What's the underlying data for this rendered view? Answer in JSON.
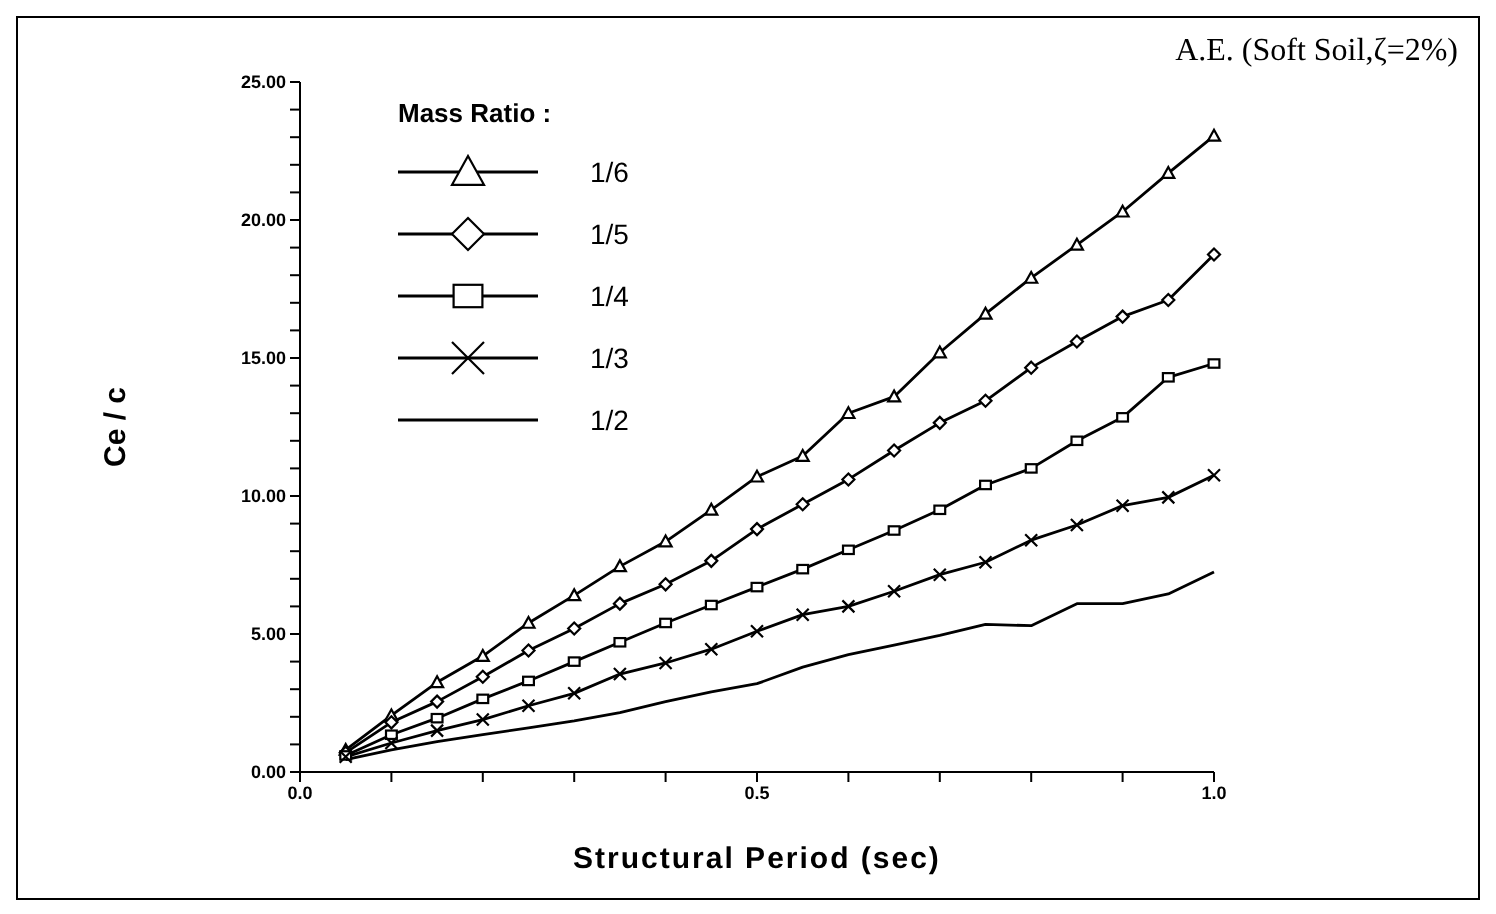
{
  "chart_data": {
    "type": "line",
    "xlabel": "Structural Period (sec)",
    "ylabel": "Ce / c",
    "legend_title": "Mass Ratio :",
    "annotations": [
      "A.E. (Soft Soil,ζ=2%)"
    ],
    "x": [
      0.05,
      0.1,
      0.15,
      0.2,
      0.25,
      0.3,
      0.35,
      0.4,
      0.45,
      0.5,
      0.55,
      0.6,
      0.65,
      0.7,
      0.75,
      0.8,
      0.85,
      0.9,
      0.95,
      1.0
    ],
    "series": [
      {
        "name": "1/6",
        "color": "#000000",
        "marker": "triangle",
        "values": [
          0.8,
          2.05,
          3.25,
          4.2,
          5.4,
          6.4,
          7.45,
          8.35,
          9.5,
          10.7,
          11.45,
          13.0,
          13.6,
          15.2,
          16.6,
          17.9,
          19.1,
          20.3,
          21.7,
          23.05
        ]
      },
      {
        "name": "1/5",
        "color": "#000000",
        "marker": "diamond",
        "values": [
          0.7,
          1.8,
          2.55,
          3.45,
          4.4,
          5.2,
          6.1,
          6.8,
          7.65,
          8.8,
          9.7,
          10.6,
          11.65,
          12.65,
          13.45,
          14.65,
          15.6,
          16.5,
          17.1,
          18.75
        ]
      },
      {
        "name": "1/4",
        "color": "#000000",
        "marker": "square",
        "values": [
          0.6,
          1.35,
          1.95,
          2.65,
          3.3,
          4.0,
          4.7,
          5.4,
          6.05,
          6.7,
          7.35,
          8.05,
          8.75,
          9.5,
          10.4,
          11.0,
          12.0,
          12.85,
          14.3,
          14.8
        ]
      },
      {
        "name": "1/3",
        "color": "#000000",
        "marker": "cross",
        "values": [
          0.55,
          1.05,
          1.5,
          1.9,
          2.4,
          2.85,
          3.55,
          3.95,
          4.45,
          5.1,
          5.7,
          6.0,
          6.55,
          7.15,
          7.6,
          8.4,
          8.95,
          9.65,
          9.95,
          10.75
        ]
      },
      {
        "name": "1/2",
        "color": "#000000",
        "marker": "none",
        "values": [
          0.45,
          0.8,
          1.1,
          1.35,
          1.6,
          1.85,
          2.15,
          2.55,
          2.9,
          3.2,
          3.8,
          4.25,
          4.6,
          4.95,
          5.35,
          5.3,
          6.1,
          6.1,
          6.45,
          7.25
        ]
      }
    ],
    "xlim": [
      0,
      1.0
    ],
    "xticks": [
      {
        "value": 0,
        "label": "0.0"
      },
      {
        "value": 0.1,
        "label": null
      },
      {
        "value": 0.2,
        "label": null
      },
      {
        "value": 0.3,
        "label": null
      },
      {
        "value": 0.4,
        "label": null
      },
      {
        "value": 0.5,
        "label": "0.5"
      },
      {
        "value": 0.6,
        "label": null
      },
      {
        "value": 0.7,
        "label": null
      },
      {
        "value": 0.8,
        "label": null
      },
      {
        "value": 0.9,
        "label": null
      },
      {
        "value": 1.0,
        "label": "1.0"
      }
    ],
    "ylim": [
      0,
      25
    ],
    "yticks": [
      {
        "value": 0,
        "label": "0.00"
      },
      {
        "value": 1,
        "label": null
      },
      {
        "value": 2,
        "label": null
      },
      {
        "value": 3,
        "label": null
      },
      {
        "value": 4,
        "label": null
      },
      {
        "value": 5,
        "label": "5.00"
      },
      {
        "value": 6,
        "label": null
      },
      {
        "value": 7,
        "label": null
      },
      {
        "value": 8,
        "label": null
      },
      {
        "value": 9,
        "label": null
      },
      {
        "value": 10,
        "label": "10.00"
      },
      {
        "value": 11,
        "label": null
      },
      {
        "value": 12,
        "label": null
      },
      {
        "value": 13,
        "label": null
      },
      {
        "value": 14,
        "label": null
      },
      {
        "value": 15,
        "label": "15.00"
      },
      {
        "value": 16,
        "label": null
      },
      {
        "value": 17,
        "label": null
      },
      {
        "value": 18,
        "label": null
      },
      {
        "value": 19,
        "label": null
      },
      {
        "value": 20,
        "label": "20.00"
      },
      {
        "value": 21,
        "label": null
      },
      {
        "value": 22,
        "label": null
      },
      {
        "value": 23,
        "label": null
      },
      {
        "value": 24,
        "label": null
      },
      {
        "value": 25,
        "label": "25.00"
      }
    ],
    "grid": false,
    "legend": "top left",
    "line_style": "solid"
  }
}
